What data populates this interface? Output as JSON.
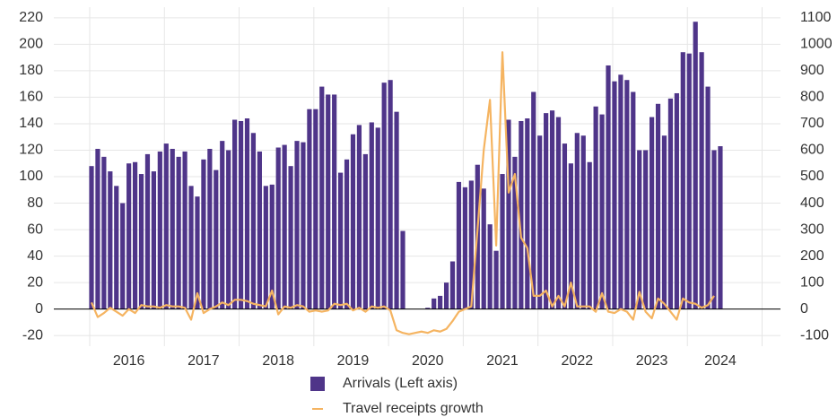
{
  "chart_data": {
    "type": "bar",
    "categories": [
      null,
      null,
      null,
      null,
      null,
      null,
      "2016",
      null,
      null,
      null,
      null,
      null,
      null,
      null,
      null,
      null,
      null,
      null,
      "2017",
      null,
      null,
      null,
      null,
      null,
      null,
      null,
      null,
      null,
      null,
      null,
      "2018",
      null,
      null,
      null,
      null,
      null,
      null,
      null,
      null,
      null,
      null,
      null,
      "2019",
      null,
      null,
      null,
      null,
      null,
      null,
      null,
      null,
      null,
      null,
      null,
      "2020",
      null,
      null,
      null,
      null,
      null,
      null,
      null,
      null,
      null,
      null,
      null,
      "2021",
      null,
      null,
      null,
      null,
      null,
      null,
      null,
      null,
      null,
      null,
      null,
      "2022",
      null,
      null,
      null,
      null,
      null,
      null,
      null,
      null,
      null,
      null,
      null,
      "2023",
      null,
      null,
      null,
      null,
      null,
      null,
      null,
      null,
      null,
      null,
      "2024"
    ],
    "series": [
      {
        "name": "Arrivals (Left axis)",
        "type": "bar",
        "color": "#4f3589",
        "values": [
          108,
          121,
          115,
          104,
          93,
          80,
          110,
          111,
          102,
          117,
          104,
          119,
          125,
          121,
          115,
          119,
          93,
          85,
          113,
          121,
          105,
          127,
          120,
          143,
          142,
          144,
          133,
          119,
          93,
          94,
          122,
          124,
          108,
          127,
          126,
          151,
          151,
          168,
          162,
          162,
          103,
          113,
          132,
          139,
          117,
          141,
          137,
          171,
          173,
          149,
          59,
          0,
          0,
          0,
          1,
          8,
          10,
          20,
          36,
          96,
          92,
          97,
          109,
          91,
          64,
          44,
          102,
          143,
          115,
          142,
          144,
          164,
          131,
          148,
          150,
          145,
          125,
          110,
          133,
          131,
          111,
          153,
          147,
          184,
          172,
          177,
          173,
          164,
          120,
          120,
          145,
          155,
          131,
          159,
          163,
          194,
          193,
          217,
          194,
          168,
          120,
          123
        ]
      },
      {
        "name": "Travel receipts growth",
        "type": "line",
        "axis": "y2",
        "color": "#f5b461",
        "values": [
          25,
          -30,
          -15,
          5,
          -10,
          -25,
          0,
          -15,
          15,
          10,
          10,
          5,
          15,
          10,
          10,
          5,
          -40,
          60,
          -15,
          0,
          10,
          25,
          15,
          35,
          35,
          30,
          20,
          15,
          10,
          70,
          -20,
          10,
          5,
          15,
          10,
          -10,
          -5,
          -10,
          -5,
          20,
          15,
          20,
          -5,
          5,
          -10,
          10,
          5,
          10,
          -5,
          -80,
          -90,
          -95,
          -90,
          -85,
          -90,
          -80,
          -85,
          -75,
          -45,
          -10,
          0,
          10,
          300,
          600,
          790,
          240,
          970,
          440,
          510,
          270,
          230,
          50,
          50,
          70,
          10,
          50,
          10,
          100,
          10,
          10,
          10,
          -10,
          60,
          -10,
          -15,
          0,
          -10,
          -40,
          65,
          -10,
          -35,
          40,
          20,
          -10,
          -40,
          40,
          25,
          20,
          5,
          15,
          50,
          null
        ]
      }
    ],
    "ylim": [
      -28,
      228
    ],
    "yticks": [
      -20,
      0,
      20,
      40,
      60,
      80,
      100,
      120,
      140,
      160,
      180,
      200,
      220
    ],
    "y2lim": [
      -140,
      1140
    ],
    "y2ticks": [
      -100,
      0,
      100,
      200,
      300,
      400,
      500,
      600,
      700,
      800,
      900,
      1000,
      1100
    ],
    "grid": true
  }
}
